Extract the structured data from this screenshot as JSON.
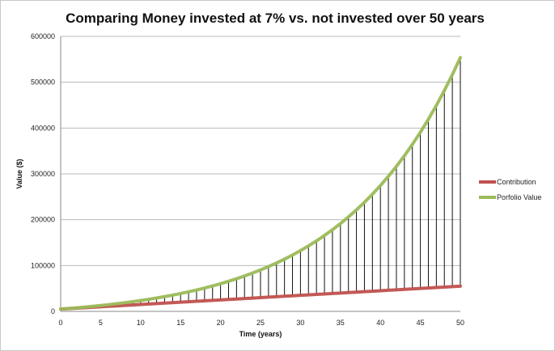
{
  "chart_data": {
    "type": "line",
    "title": "Comparing Money invested at 7% vs. not invested over 50 years",
    "xlabel": "Time (years)",
    "ylabel": "Value ($)",
    "xlim": [
      0,
      50
    ],
    "ylim": [
      0,
      600000
    ],
    "x_ticks": [
      "0",
      "5",
      "10",
      "15",
      "20",
      "25",
      "30",
      "35",
      "40",
      "45",
      "50"
    ],
    "y_ticks": [
      "0",
      "100000",
      "200000",
      "300000",
      "400000",
      "500000",
      "600000"
    ],
    "grid": "horizontal",
    "legend_position": "right",
    "high_low_lines": true,
    "x": [
      0,
      1,
      2,
      3,
      4,
      5,
      6,
      7,
      8,
      9,
      10,
      11,
      12,
      13,
      14,
      15,
      16,
      17,
      18,
      19,
      20,
      21,
      22,
      23,
      24,
      25,
      26,
      27,
      28,
      29,
      30,
      31,
      32,
      33,
      34,
      35,
      36,
      37,
      38,
      39,
      40,
      41,
      42,
      43,
      44,
      45,
      46,
      47,
      48,
      49,
      50
    ],
    "series": [
      {
        "name": "Contribution",
        "color": "#c0504d",
        "values": [
          5000,
          6000,
          7000,
          8000,
          9000,
          10000,
          11000,
          12000,
          13000,
          14000,
          15000,
          16000,
          17000,
          18000,
          19000,
          20000,
          21000,
          22000,
          23000,
          24000,
          25000,
          26000,
          27000,
          28000,
          29000,
          30000,
          31000,
          32000,
          33000,
          34000,
          35000,
          36000,
          37000,
          38000,
          39000,
          40000,
          41000,
          42000,
          43000,
          44000,
          45000,
          46000,
          47000,
          48000,
          49000,
          50000,
          51000,
          52000,
          53000,
          54000,
          55000
        ]
      },
      {
        "name": "Porfolio Value",
        "color": "#9bbb59",
        "values": [
          5000,
          6350,
          7794,
          9339,
          10994,
          12765,
          14656,
          16682,
          18850,
          21171,
          23653,
          26308,
          29149,
          32189,
          35442,
          38923,
          42649,
          46633,
          50897,
          55460,
          60344,
          65568,
          71157,
          77138,
          83538,
          90384,
          97713,
          105553,
          113940,
          122918,
          132522,
          142797,
          153794,
          165558,
          178148,
          191619,
          206031,
          221454,
          237956,
          255612,
          274506,
          294721,
          316352,
          339497,
          364262,
          390760,
          419112,
          449450,
          481911,
          516645,
          553811
        ]
      }
    ]
  }
}
